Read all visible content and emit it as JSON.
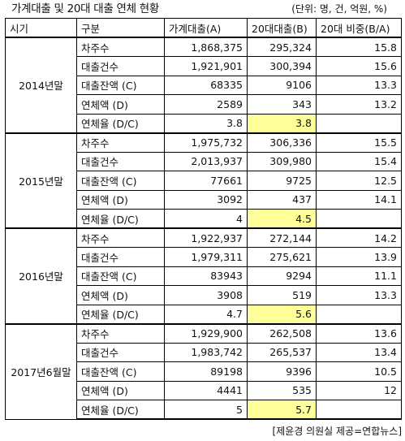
{
  "title": "가계대출 및 20대 대출 연체 현황",
  "unit_note": "(단위: 명, 건, 억원, %)",
  "headers": [
    "시기",
    "구분",
    "가계대출(A)",
    "20대대출(B)",
    "20대 비중(B/A)"
  ],
  "groups": [
    {
      "period": "2014년말",
      "rows": [
        {
          "label": "차주수",
          "a": "1,868,375",
          "b": "295,324",
          "ratio": "15.8"
        },
        {
          "label": "대출건수",
          "a": "1,921,901",
          "b": "300,394",
          "ratio": "15.6"
        },
        {
          "label": "대출잔액 (C)",
          "a": "68335",
          "b": "9106",
          "ratio": "13.3"
        },
        {
          "label": "연체액 (D)",
          "a": "2589",
          "b": "343",
          "ratio": "13.2"
        },
        {
          "label": "연체율 (D/C)",
          "a": "3.8",
          "b": "3.8",
          "ratio": ""
        }
      ]
    },
    {
      "period": "2015년말",
      "rows": [
        {
          "label": "차주수",
          "a": "1,975,732",
          "b": "306,336",
          "ratio": "15.5"
        },
        {
          "label": "대출건수",
          "a": "2,013,937",
          "b": "309,980",
          "ratio": "15.4"
        },
        {
          "label": "대출잔액 (C)",
          "a": "77661",
          "b": "9725",
          "ratio": "12.5"
        },
        {
          "label": "연체액 (D)",
          "a": "3092",
          "b": "437",
          "ratio": "14.1"
        },
        {
          "label": "연체율 (D/C)",
          "a": "4",
          "b": "4.5",
          "ratio": ""
        }
      ]
    },
    {
      "period": "2016년말",
      "rows": [
        {
          "label": "차주수",
          "a": "1,922,937",
          "b": "272,144",
          "ratio": "14.2"
        },
        {
          "label": "대출건수",
          "a": "1,979,311",
          "b": "275,621",
          "ratio": "13.9"
        },
        {
          "label": "대출잔액 (C)",
          "a": "83943",
          "b": "9294",
          "ratio": "11.1"
        },
        {
          "label": "연체액 (D)",
          "a": "3908",
          "b": "519",
          "ratio": "13.3"
        },
        {
          "label": "연체율 (D/C)",
          "a": "4.7",
          "b": "5.6",
          "ratio": ""
        }
      ]
    },
    {
      "period": "2017년6월말",
      "rows": [
        {
          "label": "차주수",
          "a": "1,929,900",
          "b": "262,508",
          "ratio": "13.6"
        },
        {
          "label": "대출건수",
          "a": "1,983,742",
          "b": "265,537",
          "ratio": "13.4"
        },
        {
          "label": "대출잔액 (C)",
          "a": "89198",
          "b": "9396",
          "ratio": "10.5"
        },
        {
          "label": "연체액 (D)",
          "a": "4441",
          "b": "535",
          "ratio": "12"
        },
        {
          "label": "연체율 (D/C)",
          "a": "5",
          "b": "5.7",
          "ratio": ""
        }
      ]
    }
  ],
  "highlight_color": "#ffff99",
  "source": "[제윤경 의원실 제공=연합뉴스]"
}
